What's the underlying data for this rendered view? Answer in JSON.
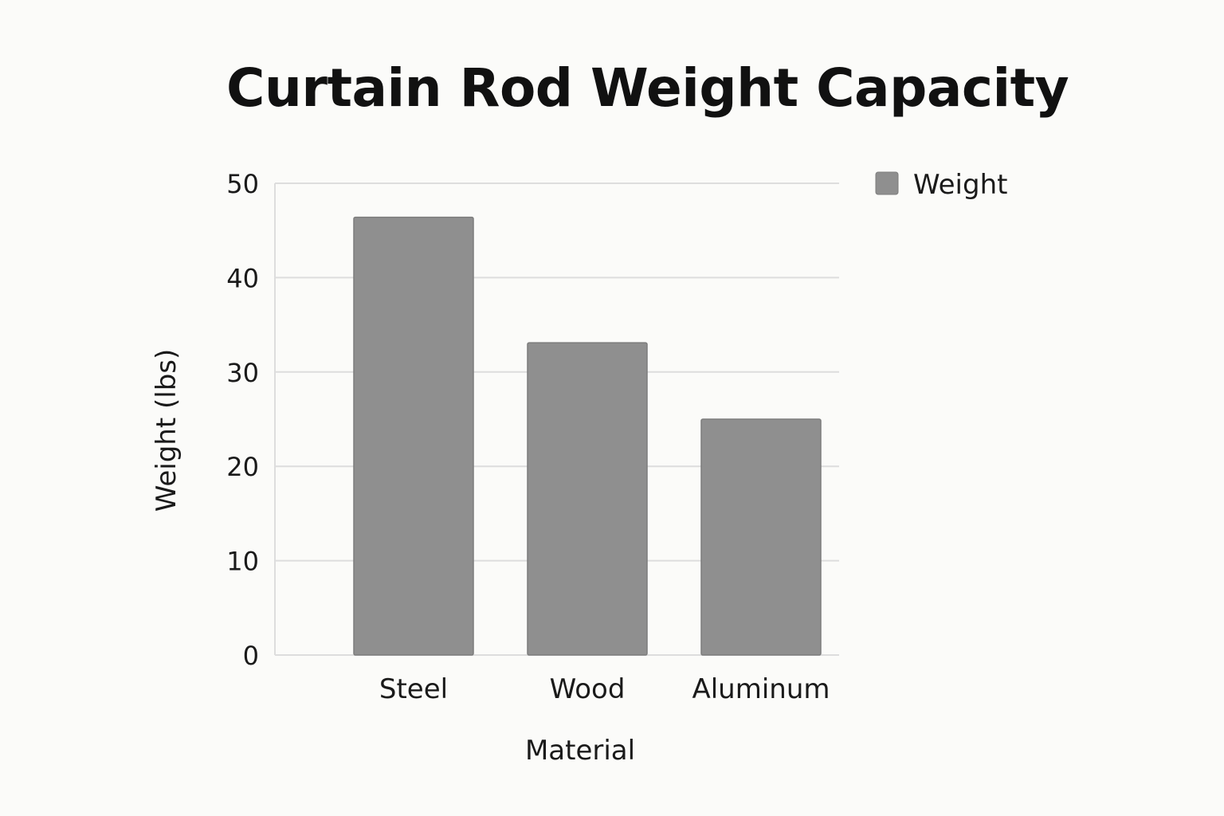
{
  "chart_data": {
    "type": "bar",
    "title": "Curtain Rod Weight Capacity",
    "xlabel": "Material",
    "ylabel": "Weight (lbs)",
    "categories": [
      "Steel",
      "Wood",
      "Aluminum"
    ],
    "series": [
      {
        "name": "Weight",
        "values": [
          46.4,
          33.1,
          25.0
        ]
      }
    ],
    "ylim": [
      0,
      50
    ],
    "yticks": [
      "0",
      "10",
      "20",
      "30",
      "40",
      "50"
    ],
    "grid": true,
    "legend": "top-right",
    "colors": {
      "bar": "#8f8f8f",
      "bar_edge": "#7d7d7d",
      "grid": "#dddddd"
    }
  }
}
